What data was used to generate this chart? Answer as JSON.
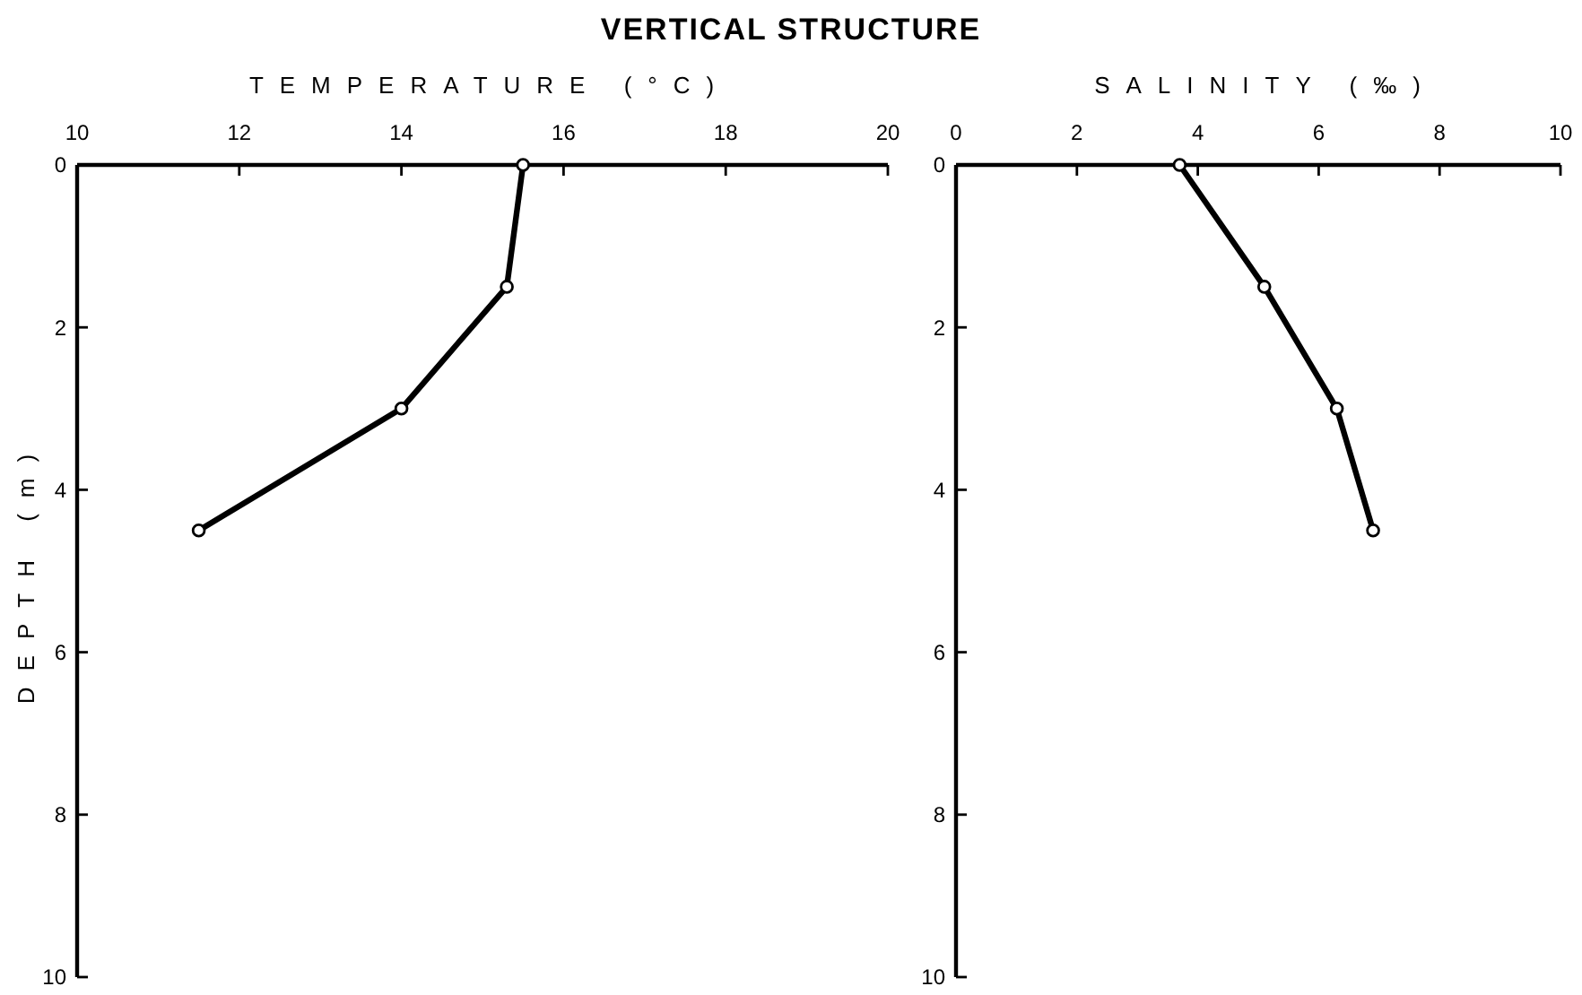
{
  "chart_data": [
    {
      "type": "line",
      "title": "VERTICAL STRUCTURE",
      "xlabel": "TEMPERATURE (°C)",
      "ylabel": "DEPTH (m)",
      "x": [
        15.5,
        15.3,
        14.0,
        11.5
      ],
      "values": [
        0,
        1.5,
        3.0,
        4.5
      ],
      "color": "#000000",
      "marker": "circle",
      "line_style": "solid",
      "xlim": [
        10,
        20
      ],
      "xticks": [
        10,
        12,
        14,
        16,
        18,
        20
      ],
      "ylim": [
        10,
        0
      ],
      "yticks": [
        0,
        2,
        4,
        6,
        8,
        10
      ]
    },
    {
      "type": "line",
      "xlabel": "SALINITY (‰)",
      "x": [
        3.7,
        5.1,
        6.3,
        6.9
      ],
      "values": [
        0,
        1.5,
        3.0,
        4.5
      ],
      "color": "#000000",
      "marker": "circle",
      "line_style": "solid",
      "xlim": [
        0,
        10
      ],
      "xticks": [
        0,
        2,
        4,
        6,
        8,
        10
      ],
      "ylim": [
        10,
        0
      ],
      "yticks": [
        0,
        2,
        4,
        6,
        8,
        10
      ]
    }
  ]
}
